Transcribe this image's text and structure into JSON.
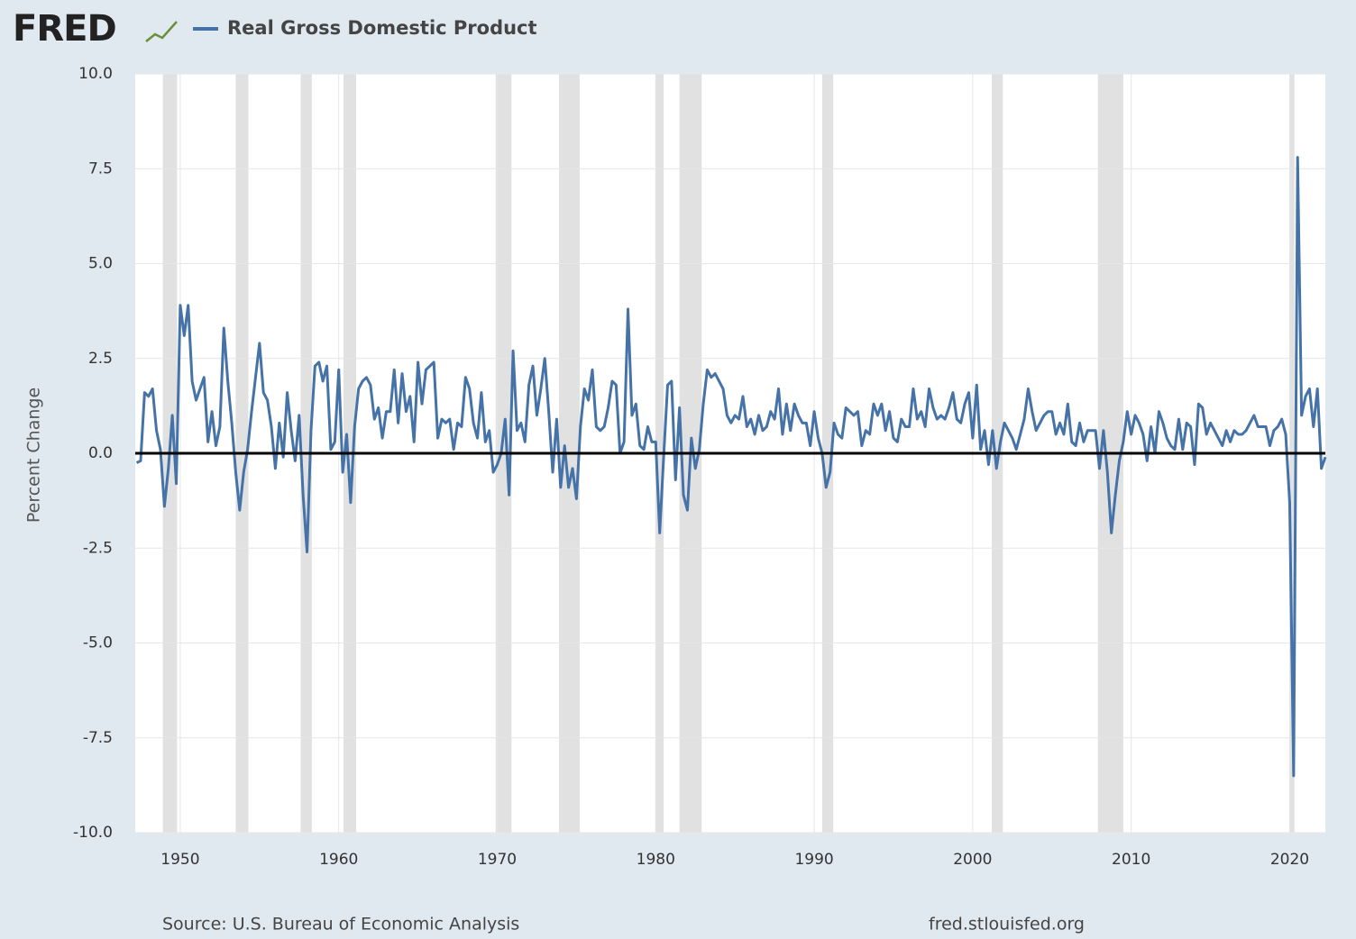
{
  "chart_data": {
    "type": "line",
    "logo": "FRED",
    "y_label": "Percent Change",
    "source": "Source: U.S. Bureau of Economic Analysis",
    "website": "fred.stlouisfed.org",
    "xlim": [
      1947.16,
      2022.25
    ],
    "xticks": [
      1950,
      1960,
      1970,
      1980,
      1990,
      2000,
      2010,
      2020
    ],
    "ylim": [
      -10,
      10
    ],
    "yticks": [
      {
        "value": 10,
        "label": "10.0"
      },
      7.5,
      {
        "value": 5,
        "label": "5.0"
      },
      2.5,
      {
        "value": 0,
        "label": "0.0"
      },
      -2.5,
      {
        "value": -5,
        "label": "-5.0"
      },
      -7.5,
      {
        "value": -10,
        "label": "-10.0"
      }
    ],
    "grid": true,
    "recessions": [
      [
        1948.9,
        1949.8
      ],
      [
        1953.5,
        1954.3
      ],
      [
        1957.6,
        1958.3
      ],
      [
        1960.3,
        1961.1
      ],
      [
        1969.9,
        1970.9
      ],
      [
        1973.9,
        1975.2
      ],
      [
        1980.0,
        1980.5
      ],
      [
        1981.5,
        1982.9
      ],
      [
        1990.5,
        1991.2
      ],
      [
        2001.2,
        2001.9
      ],
      [
        2007.9,
        2009.5
      ],
      [
        2020.0,
        2020.3
      ]
    ],
    "x": [
      1947.25,
      1947.5,
      1947.75,
      1948,
      1948.25,
      1948.5,
      1948.75,
      1949,
      1949.25,
      1949.5,
      1949.75,
      1950,
      1950.25,
      1950.5,
      1950.75,
      1951,
      1951.25,
      1951.5,
      1951.75,
      1952,
      1952.25,
      1952.5,
      1952.75,
      1953,
      1953.25,
      1953.5,
      1953.75,
      1954,
      1954.25,
      1954.5,
      1954.75,
      1955,
      1955.25,
      1955.5,
      1955.75,
      1956,
      1956.25,
      1956.5,
      1956.75,
      1957,
      1957.25,
      1957.5,
      1957.75,
      1958,
      1958.25,
      1958.5,
      1958.75,
      1959,
      1959.25,
      1959.5,
      1959.75,
      1960,
      1960.25,
      1960.5,
      1960.75,
      1961,
      1961.25,
      1961.5,
      1961.75,
      1962,
      1962.25,
      1962.5,
      1962.75,
      1963,
      1963.25,
      1963.5,
      1963.75,
      1964,
      1964.25,
      1964.5,
      1964.75,
      1965,
      1965.25,
      1965.5,
      1965.75,
      1966,
      1966.25,
      1966.5,
      1966.75,
      1967,
      1967.25,
      1967.5,
      1967.75,
      1968,
      1968.25,
      1968.5,
      1968.75,
      1969,
      1969.25,
      1969.5,
      1969.75,
      1970,
      1970.25,
      1970.5,
      1970.75,
      1971,
      1971.25,
      1971.5,
      1971.75,
      1972,
      1972.25,
      1972.5,
      1972.75,
      1973,
      1973.25,
      1973.5,
      1973.75,
      1974,
      1974.25,
      1974.5,
      1974.75,
      1975,
      1975.25,
      1975.5,
      1975.75,
      1976,
      1976.25,
      1976.5,
      1976.75,
      1977,
      1977.25,
      1977.5,
      1977.75,
      1978,
      1978.25,
      1978.5,
      1978.75,
      1979,
      1979.25,
      1979.5,
      1979.75,
      1980,
      1980.25,
      1980.5,
      1980.75,
      1981,
      1981.25,
      1981.5,
      1981.75,
      1982,
      1982.25,
      1982.5,
      1982.75,
      1983,
      1983.25,
      1983.5,
      1983.75,
      1984,
      1984.25,
      1984.5,
      1984.75,
      1985,
      1985.25,
      1985.5,
      1985.75,
      1986,
      1986.25,
      1986.5,
      1986.75,
      1987,
      1987.25,
      1987.5,
      1987.75,
      1988,
      1988.25,
      1988.5,
      1988.75,
      1989,
      1989.25,
      1989.5,
      1989.75,
      1990,
      1990.25,
      1990.5,
      1990.75,
      1991,
      1991.25,
      1991.5,
      1991.75,
      1992,
      1992.25,
      1992.5,
      1992.75,
      1993,
      1993.25,
      1993.5,
      1993.75,
      1994,
      1994.25,
      1994.5,
      1994.75,
      1995,
      1995.25,
      1995.5,
      1995.75,
      1996,
      1996.25,
      1996.5,
      1996.75,
      1997,
      1997.25,
      1997.5,
      1997.75,
      1998,
      1998.25,
      1998.5,
      1998.75,
      1999,
      1999.25,
      1999.5,
      1999.75,
      2000,
      2000.25,
      2000.5,
      2000.75,
      2001,
      2001.25,
      2001.5,
      2001.75,
      2002,
      2002.25,
      2002.5,
      2002.75,
      2003,
      2003.25,
      2003.5,
      2003.75,
      2004,
      2004.25,
      2004.5,
      2004.75,
      2005,
      2005.25,
      2005.5,
      2005.75,
      2006,
      2006.25,
      2006.5,
      2006.75,
      2007,
      2007.25,
      2007.5,
      2007.75,
      2008,
      2008.25,
      2008.5,
      2008.75,
      2009,
      2009.25,
      2009.5,
      2009.75,
      2010,
      2010.25,
      2010.5,
      2010.75,
      2011,
      2011.25,
      2011.5,
      2011.75,
      2012,
      2012.25,
      2012.5,
      2012.75,
      2013,
      2013.25,
      2013.5,
      2013.75,
      2014,
      2014.25,
      2014.5,
      2014.75,
      2015,
      2015.25,
      2015.5,
      2015.75,
      2016,
      2016.25,
      2016.5,
      2016.75,
      2017,
      2017.25,
      2017.5,
      2017.75,
      2018,
      2018.25,
      2018.5,
      2018.75,
      2019,
      2019.25,
      2019.5,
      2019.75,
      2020,
      2020.25,
      2020.5,
      2020.75,
      2021,
      2021.25,
      2021.5,
      2021.75,
      2022,
      2022.25
    ],
    "series": [
      {
        "name": "Real Gross Domestic Product",
        "color": "#4572a7",
        "values": [
          -0.25,
          -0.2,
          1.6,
          1.5,
          1.7,
          0.6,
          0.1,
          -1.4,
          -0.4,
          1.0,
          -0.8,
          3.9,
          3.1,
          3.9,
          1.9,
          1.4,
          1.7,
          2.0,
          0.3,
          1.1,
          0.2,
          0.7,
          3.3,
          1.9,
          0.8,
          -0.5,
          -1.5,
          -0.5,
          0.1,
          1.1,
          2.0,
          2.9,
          1.6,
          1.4,
          0.7,
          -0.4,
          0.8,
          -0.1,
          1.6,
          0.6,
          -0.2,
          1.0,
          -1.1,
          -2.6,
          0.6,
          2.3,
          2.4,
          1.9,
          2.3,
          0.1,
          0.3,
          2.2,
          -0.5,
          0.5,
          -1.3,
          0.7,
          1.7,
          1.9,
          2.0,
          1.8,
          0.9,
          1.2,
          0.4,
          1.1,
          1.1,
          2.2,
          0.8,
          2.1,
          1.1,
          1.5,
          0.3,
          2.4,
          1.3,
          2.2,
          2.3,
          2.4,
          0.4,
          0.9,
          0.8,
          0.9,
          0.1,
          0.8,
          0.7,
          2.0,
          1.7,
          0.8,
          0.4,
          1.6,
          0.3,
          0.6,
          -0.5,
          -0.3,
          0.0,
          0.9,
          -1.1,
          2.7,
          0.6,
          0.8,
          0.3,
          1.8,
          2.3,
          1.0,
          1.7,
          2.5,
          1.1,
          -0.5,
          0.9,
          -0.9,
          0.2,
          -0.9,
          -0.4,
          -1.2,
          0.7,
          1.7,
          1.4,
          2.2,
          0.7,
          0.6,
          0.7,
          1.2,
          1.9,
          1.8,
          0.0,
          0.3,
          3.8,
          1.0,
          1.3,
          0.2,
          0.1,
          0.7,
          0.3,
          0.3,
          -2.1,
          -0.1,
          1.8,
          1.9,
          -0.7,
          1.2,
          -1.1,
          -1.5,
          0.4,
          -0.4,
          0.1,
          1.3,
          2.2,
          2.0,
          2.1,
          1.9,
          1.7,
          1.0,
          0.8,
          1.0,
          0.9,
          1.5,
          0.7,
          0.9,
          0.5,
          1.0,
          0.6,
          0.7,
          1.1,
          0.9,
          1.7,
          0.5,
          1.3,
          0.6,
          1.3,
          1.0,
          0.8,
          0.8,
          0.2,
          1.1,
          0.4,
          0.0,
          -0.9,
          -0.5,
          0.8,
          0.5,
          0.4,
          1.2,
          1.1,
          1.0,
          1.1,
          0.2,
          0.6,
          0.5,
          1.3,
          1.0,
          1.3,
          0.6,
          1.1,
          0.4,
          0.3,
          0.9,
          0.7,
          0.7,
          1.7,
          0.9,
          1.1,
          0.7,
          1.7,
          1.2,
          0.9,
          1.0,
          0.9,
          1.2,
          1.6,
          0.9,
          0.8,
          1.3,
          1.6,
          0.4,
          1.8,
          0.1,
          0.6,
          -0.3,
          0.6,
          -0.4,
          0.3,
          0.8,
          0.6,
          0.4,
          0.1,
          0.5,
          0.9,
          1.7,
          1.1,
          0.6,
          0.8,
          1.0,
          1.1,
          1.1,
          0.5,
          0.8,
          0.5,
          1.3,
          0.3,
          0.2,
          0.8,
          0.3,
          0.6,
          0.6,
          0.6,
          -0.4,
          0.6,
          -0.5,
          -2.1,
          -1.1,
          -0.2,
          0.3,
          1.1,
          0.5,
          1.0,
          0.8,
          0.5,
          -0.2,
          0.7,
          0.0,
          1.1,
          0.8,
          0.4,
          0.2,
          0.1,
          0.9,
          0.1,
          0.8,
          0.7,
          -0.3,
          1.3,
          1.2,
          0.5,
          0.8,
          0.6,
          0.4,
          0.2,
          0.6,
          0.3,
          0.6,
          0.5,
          0.5,
          0.6,
          0.8,
          1.0,
          0.7,
          0.7,
          0.7,
          0.2,
          0.6,
          0.7,
          0.9,
          0.5,
          -1.3,
          -8.5,
          7.8,
          1.0,
          1.5,
          1.7,
          0.7,
          1.7,
          -0.4,
          -0.1
        ]
      }
    ]
  }
}
